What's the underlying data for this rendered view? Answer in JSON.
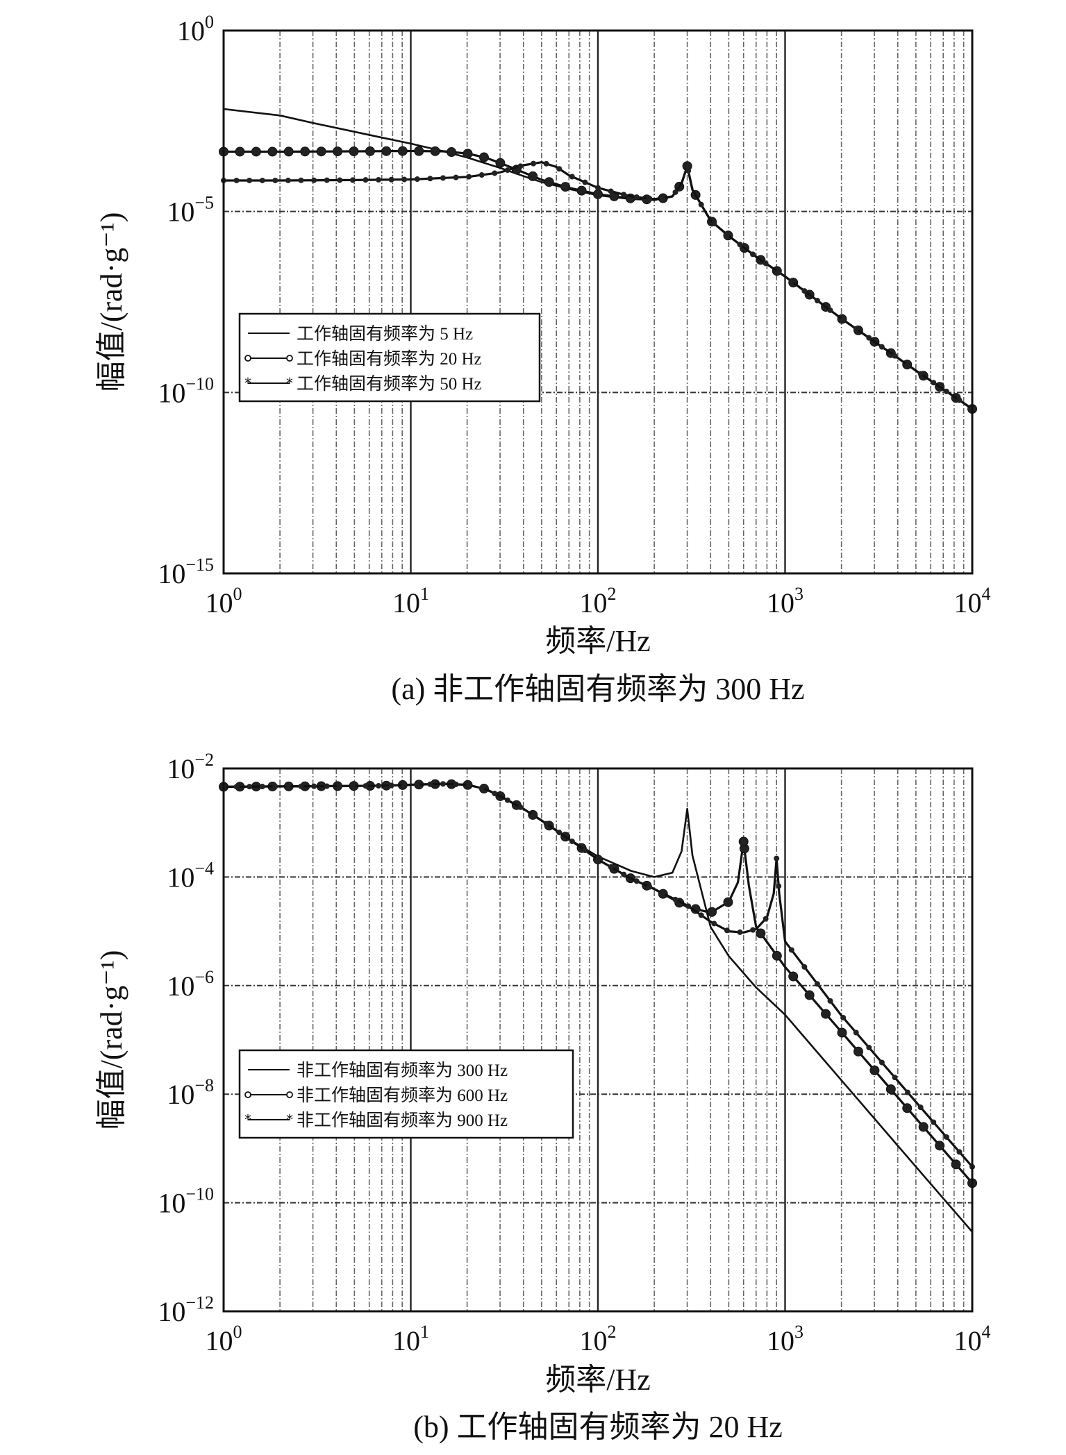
{
  "chart_data": [
    {
      "id": "a",
      "type": "line",
      "caption": "(a) 非工作轴固有频率为 300 Hz",
      "xlabel": "频率/Hz",
      "ylabel": "幅值/(rad·g⁻¹)",
      "xscale": "log",
      "yscale": "log",
      "xlim": [
        1,
        10000
      ],
      "ylim": [
        1e-15,
        1
      ],
      "grid": true,
      "legend_position": "middle-left",
      "xticks": [
        {
          "base": "10",
          "exp": "0"
        },
        {
          "base": "10",
          "exp": "1"
        },
        {
          "base": "10",
          "exp": "2"
        },
        {
          "base": "10",
          "exp": "3"
        },
        {
          "base": "10",
          "exp": "4"
        }
      ],
      "yticks": [
        {
          "base": "10",
          "exp": "0"
        },
        {
          "base": "10",
          "exp": "−5"
        },
        {
          "base": "10",
          "exp": "−10"
        },
        {
          "base": "10",
          "exp": "−15"
        }
      ],
      "series": [
        {
          "name": "工作轴固有频率为 5 Hz",
          "marker": "none",
          "points": [
            [
              1,
              0.0068
            ],
            [
              2,
              0.0045
            ],
            [
              3,
              0.0028
            ],
            [
              5,
              0.0016
            ],
            [
              7,
              0.0011
            ],
            [
              10,
              0.00075
            ],
            [
              15,
              0.00046
            ],
            [
              20,
              0.00031
            ],
            [
              30,
              0.00016
            ],
            [
              40,
              9.5e-05
            ],
            [
              50,
              6.5e-05
            ],
            [
              70,
              4.2e-05
            ],
            [
              100,
              2.8e-05
            ],
            [
              150,
              2.2e-05
            ],
            [
              200,
              2.1e-05
            ],
            [
              250,
              2.6e-05
            ],
            [
              280,
              6e-05
            ],
            [
              300,
              0.00018
            ],
            [
              320,
              4e-05
            ],
            [
              400,
              5.6e-06
            ],
            [
              500,
              2.1e-06
            ],
            [
              700,
              5.6e-07
            ],
            [
              1000,
              1.6e-07
            ],
            [
              2000,
              1.1e-08
            ],
            [
              5000,
              4e-10
            ],
            [
              10000,
              3.5e-11
            ]
          ]
        },
        {
          "name": "工作轴固有频率为 20 Hz",
          "marker": "circle",
          "points": [
            [
              1,
              0.00045
            ],
            [
              2,
              0.00045
            ],
            [
              5,
              0.00046
            ],
            [
              10,
              0.00047
            ],
            [
              15,
              0.00046
            ],
            [
              20,
              0.0004
            ],
            [
              25,
              0.00031
            ],
            [
              30,
              0.00022
            ],
            [
              40,
              0.00012
            ],
            [
              50,
              7.5e-05
            ],
            [
              70,
              4.5e-05
            ],
            [
              100,
              3e-05
            ],
            [
              150,
              2.3e-05
            ],
            [
              200,
              2.1e-05
            ],
            [
              250,
              2.6e-05
            ],
            [
              280,
              6e-05
            ],
            [
              300,
              0.00018
            ],
            [
              320,
              4e-05
            ],
            [
              400,
              5.6e-06
            ],
            [
              500,
              2.1e-06
            ],
            [
              700,
              5.6e-07
            ],
            [
              1000,
              1.6e-07
            ],
            [
              2000,
              1.1e-08
            ],
            [
              5000,
              4e-10
            ],
            [
              10000,
              3.5e-11
            ]
          ]
        },
        {
          "name": "工作轴固有频率为 50 Hz",
          "marker": "star",
          "points": [
            [
              1,
              7.2e-05
            ],
            [
              2,
              7.2e-05
            ],
            [
              5,
              7.4e-05
            ],
            [
              10,
              7.7e-05
            ],
            [
              20,
              9e-05
            ],
            [
              30,
              0.00012
            ],
            [
              40,
              0.00019
            ],
            [
              50,
              0.00023
            ],
            [
              60,
              0.00017
            ],
            [
              70,
              0.0001
            ],
            [
              100,
              4.5e-05
            ],
            [
              150,
              2.6e-05
            ],
            [
              200,
              2.2e-05
            ],
            [
              250,
              2.6e-05
            ],
            [
              280,
              6e-05
            ],
            [
              300,
              0.00018
            ],
            [
              320,
              4e-05
            ],
            [
              400,
              5.6e-06
            ],
            [
              500,
              2.1e-06
            ],
            [
              700,
              5.6e-07
            ],
            [
              1000,
              1.6e-07
            ],
            [
              2000,
              1.1e-08
            ],
            [
              5000,
              4e-10
            ],
            [
              10000,
              3.5e-11
            ]
          ]
        }
      ]
    },
    {
      "id": "b",
      "type": "line",
      "caption": "(b) 工作轴固有频率为 20 Hz",
      "xlabel": "频率/Hz",
      "ylabel": "幅值/(rad·g⁻¹)",
      "xscale": "log",
      "yscale": "log",
      "xlim": [
        1,
        10000
      ],
      "ylim": [
        1e-12,
        0.01
      ],
      "grid": true,
      "legend_position": "lower-left",
      "xticks": [
        {
          "base": "10",
          "exp": "0"
        },
        {
          "base": "10",
          "exp": "1"
        },
        {
          "base": "10",
          "exp": "2"
        },
        {
          "base": "10",
          "exp": "3"
        },
        {
          "base": "10",
          "exp": "4"
        }
      ],
      "yticks": [
        {
          "base": "10",
          "exp": "−2"
        },
        {
          "base": "10",
          "exp": "−4"
        },
        {
          "base": "10",
          "exp": "−6"
        },
        {
          "base": "10",
          "exp": "−8"
        },
        {
          "base": "10",
          "exp": "−10"
        },
        {
          "base": "10",
          "exp": "−12"
        }
      ],
      "series": [
        {
          "name": "非工作轴固有频率为 300 Hz",
          "marker": "none",
          "points": [
            [
              1,
              0.0046
            ],
            [
              3,
              0.0047
            ],
            [
              7,
              0.0048
            ],
            [
              10,
              0.005
            ],
            [
              15,
              0.0052
            ],
            [
              20,
              0.005
            ],
            [
              25,
              0.0042
            ],
            [
              30,
              0.0031
            ],
            [
              40,
              0.0018
            ],
            [
              50,
              0.0011
            ],
            [
              70,
              0.0005
            ],
            [
              100,
              0.00024
            ],
            [
              150,
              0.00013
            ],
            [
              200,
              0.0001
            ],
            [
              250,
              0.00012
            ],
            [
              280,
              0.0003
            ],
            [
              300,
              0.0018
            ],
            [
              320,
              0.00025
            ],
            [
              400,
              1.2e-05
            ],
            [
              500,
              3.5e-06
            ],
            [
              700,
              9.2e-07
            ],
            [
              1000,
              2.9e-07
            ],
            [
              2000,
              1.8e-08
            ],
            [
              5000,
              4.6e-10
            ],
            [
              10000,
              2.9e-11
            ]
          ]
        },
        {
          "name": "非工作轴固有频率为 600 Hz",
          "marker": "circle",
          "points": [
            [
              1,
              0.0046
            ],
            [
              3,
              0.0047
            ],
            [
              7,
              0.0048
            ],
            [
              10,
              0.005
            ],
            [
              15,
              0.0052
            ],
            [
              20,
              0.005
            ],
            [
              25,
              0.0042
            ],
            [
              30,
              0.0031
            ],
            [
              40,
              0.0018
            ],
            [
              50,
              0.0011
            ],
            [
              70,
              0.0005
            ],
            [
              100,
              0.00021
            ],
            [
              150,
              9.4e-05
            ],
            [
              200,
              6e-05
            ],
            [
              300,
              2.8e-05
            ],
            [
              400,
              2.2e-05
            ],
            [
              500,
              3.5e-05
            ],
            [
              560,
              8e-05
            ],
            [
              600,
              0.00045
            ],
            [
              640,
              7e-05
            ],
            [
              700,
              1.2e-05
            ],
            [
              1000,
              2.2e-06
            ],
            [
              2000,
              1.4e-07
            ],
            [
              5000,
              3.6e-09
            ],
            [
              10000,
              2.3e-10
            ]
          ]
        },
        {
          "name": "非工作轴固有频率为 900 Hz",
          "marker": "star",
          "points": [
            [
              1,
              0.0046
            ],
            [
              3,
              0.0047
            ],
            [
              7,
              0.0048
            ],
            [
              10,
              0.005
            ],
            [
              15,
              0.0052
            ],
            [
              20,
              0.005
            ],
            [
              25,
              0.0042
            ],
            [
              30,
              0.0031
            ],
            [
              40,
              0.0018
            ],
            [
              50,
              0.0011
            ],
            [
              70,
              0.0005
            ],
            [
              100,
              0.00021
            ],
            [
              150,
              9.4e-05
            ],
            [
              200,
              6e-05
            ],
            [
              300,
              3e-05
            ],
            [
              400,
              1.5e-05
            ],
            [
              500,
              1e-05
            ],
            [
              600,
              9.5e-06
            ],
            [
              700,
              1.1e-05
            ],
            [
              800,
              1.8e-05
            ],
            [
              870,
              5e-05
            ],
            [
              900,
              0.00022
            ],
            [
              930,
              5e-05
            ],
            [
              1000,
              6.5e-06
            ],
            [
              2000,
              2.8e-07
            ],
            [
              5000,
              7.2e-09
            ],
            [
              10000,
              4.6e-10
            ]
          ]
        }
      ]
    }
  ]
}
